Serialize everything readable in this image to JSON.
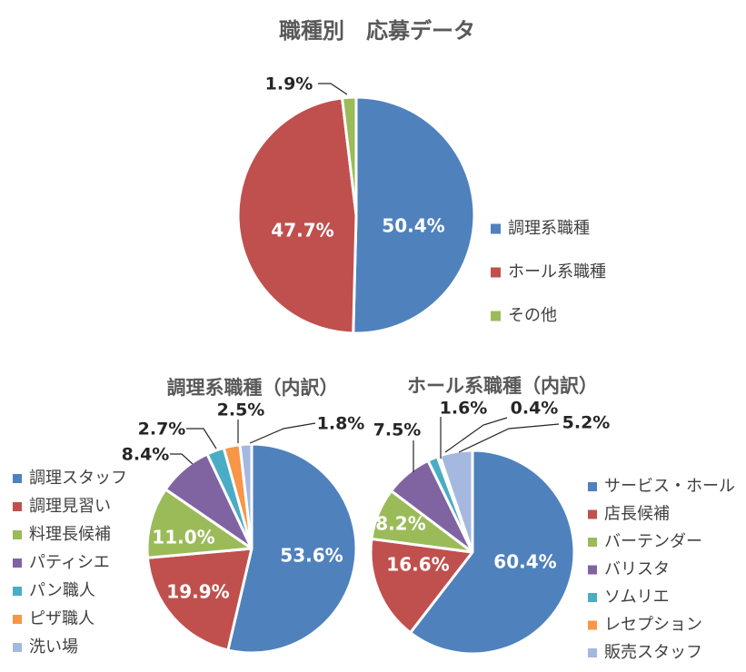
{
  "chart_data": [
    {
      "type": "pie",
      "title": "職種別　応募データ",
      "categories": [
        "調理系職種",
        "ホール系職種",
        "その他"
      ],
      "values": [
        50.4,
        47.7,
        1.9
      ],
      "labels": [
        "50.4%",
        "47.7%",
        "1.9%"
      ],
      "colors": [
        "#4f81bd",
        "#c0504d",
        "#9bbb59"
      ],
      "legend": "right"
    },
    {
      "type": "pie",
      "title": "調理系職種（内訳）",
      "categories": [
        "調理スタッフ",
        "調理見習い",
        "料理長候補",
        "パティシエ",
        "パン職人",
        "ピザ職人",
        "洗い場"
      ],
      "values": [
        53.6,
        19.9,
        11.0,
        8.4,
        2.7,
        2.5,
        1.8
      ],
      "labels": [
        "53.6%",
        "19.9%",
        "11.0%",
        "8.4%",
        "2.7%",
        "2.5%",
        "1.8%"
      ],
      "colors": [
        "#4f81bd",
        "#c0504d",
        "#9bbb59",
        "#8064a2",
        "#4bacc6",
        "#f79646",
        "#a5b8df"
      ],
      "legend": "left"
    },
    {
      "type": "pie",
      "title": "ホール系職種（内訳）",
      "categories": [
        "サービス・ホール",
        "店長候補",
        "バーテンダー",
        "バリスタ",
        "ソムリエ",
        "レセプション",
        "販売スタッフ"
      ],
      "values": [
        60.4,
        16.6,
        8.2,
        7.5,
        1.6,
        0.4,
        5.2
      ],
      "labels": [
        "60.4%",
        "16.6%",
        "8.2%",
        "7.5%",
        "1.6%",
        "0.4%",
        "5.2%"
      ],
      "colors": [
        "#4f81bd",
        "#c0504d",
        "#9bbb59",
        "#8064a2",
        "#4bacc6",
        "#f79646",
        "#a5b8df"
      ],
      "legend": "right"
    }
  ]
}
